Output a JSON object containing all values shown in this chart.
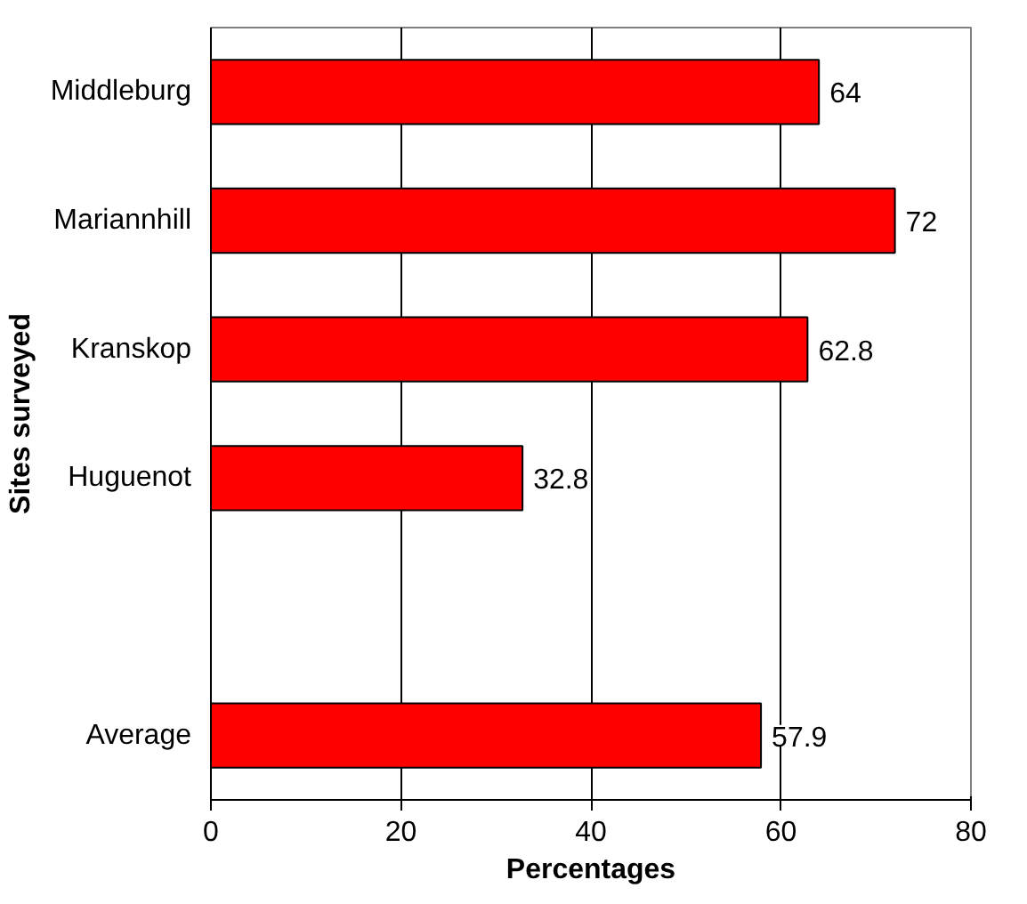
{
  "chart_data": {
    "type": "bar",
    "orientation": "horizontal",
    "xlabel": "Percentages",
    "ylabel": "Sites surveyed",
    "categories": [
      "Middleburg",
      "Mariannhill",
      "Kranskop",
      "Huguenot",
      null,
      "Average"
    ],
    "values": [
      64,
      72,
      62.8,
      32.8,
      null,
      57.9
    ],
    "color": "#ff0000",
    "xlim": [
      0,
      80
    ],
    "xticks": [
      0,
      20,
      40,
      60,
      80
    ],
    "grid": "x",
    "data_labels": true
  }
}
